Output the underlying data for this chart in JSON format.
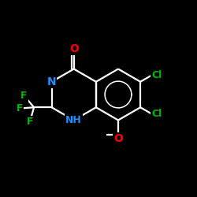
{
  "bg_color": "#000000",
  "bond_color": "#ffffff",
  "N_color": "#1e90ff",
  "O_color": "#ff0000",
  "F_color": "#00bb00",
  "Cl_color": "#00bb00",
  "lw": 1.6,
  "figsize": [
    2.5,
    2.5
  ],
  "dpi": 100,
  "xlim": [
    0,
    10
  ],
  "ylim": [
    0,
    10
  ]
}
